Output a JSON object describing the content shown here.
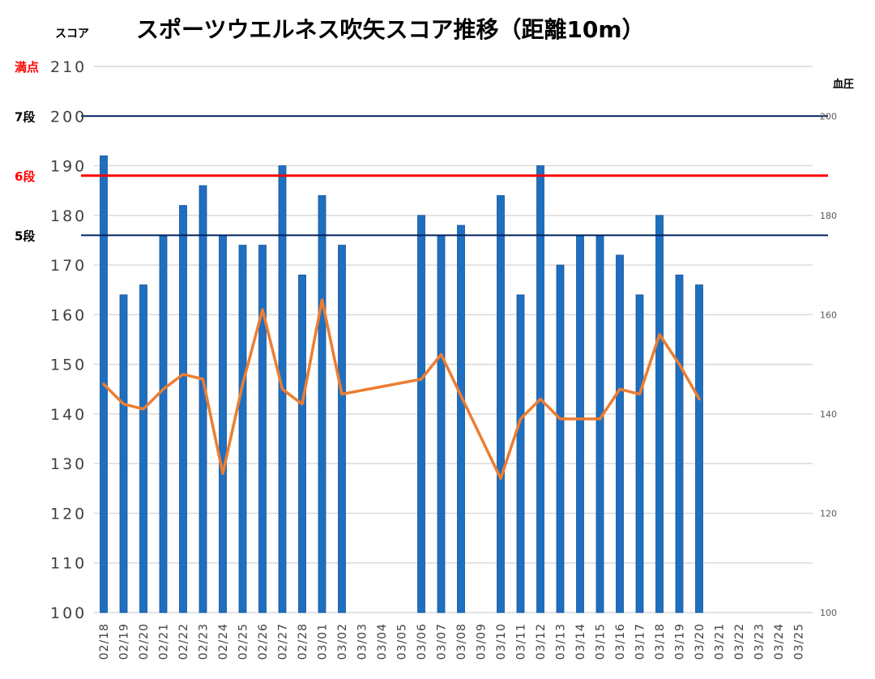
{
  "chart_data": {
    "type": "bar",
    "title": "スポーツウエルネス吹矢スコア推移（距離10m）",
    "ylabel": "スコア",
    "y2label": "血圧",
    "ylim": [
      100,
      210
    ],
    "yticks": [
      100,
      110,
      120,
      130,
      140,
      150,
      160,
      170,
      180,
      190,
      200,
      210
    ],
    "y2lim": [
      100,
      210
    ],
    "y2ticks": [
      100,
      120,
      140,
      160,
      180,
      200
    ],
    "grid": true,
    "categories": [
      "02/18",
      "02/19",
      "02/20",
      "02/21",
      "02/22",
      "02/23",
      "02/24",
      "02/25",
      "02/26",
      "02/27",
      "02/28",
      "03/01",
      "03/02",
      "03/03",
      "03/04",
      "03/05",
      "03/06",
      "03/07",
      "03/08",
      "03/09",
      "03/10",
      "03/11",
      "03/12",
      "03/13",
      "03/14",
      "03/15",
      "03/16",
      "03/17",
      "03/18",
      "03/19",
      "03/20",
      "03/21",
      "03/22",
      "03/23",
      "03/24",
      "03/25"
    ],
    "series": [
      {
        "type": "bar",
        "axis": "left",
        "color": "#1f6fc0",
        "values": [
          192,
          164,
          166,
          176,
          182,
          186,
          176,
          174,
          174,
          190,
          168,
          184,
          174,
          null,
          null,
          null,
          180,
          176,
          178,
          null,
          184,
          164,
          190,
          170,
          176,
          176,
          172,
          164,
          180,
          168,
          166,
          null,
          null,
          null,
          null,
          null
        ]
      },
      {
        "type": "line",
        "axis": "right",
        "color": "#ed7d31",
        "values": [
          146,
          142,
          141,
          145,
          148,
          147,
          128,
          146,
          161,
          145,
          142,
          163,
          144,
          null,
          null,
          null,
          147,
          152,
          null,
          null,
          127,
          139,
          143,
          139,
          139,
          139,
          145,
          144,
          156,
          150,
          143,
          null,
          null,
          null,
          null,
          null
        ]
      }
    ],
    "reference_lines": [
      {
        "label": "満点",
        "value": 210,
        "color": "#ff0000",
        "line": false
      },
      {
        "label": "7段",
        "value": 200,
        "color": "#000000",
        "line_color": "#002060",
        "line": true
      },
      {
        "label": "6段",
        "value": 188,
        "color": "#ff0000",
        "line_color": "#ff0000",
        "line": true
      },
      {
        "label": "5段",
        "value": 176,
        "color": "#000000",
        "line_color": "#002060",
        "line": true
      }
    ]
  }
}
